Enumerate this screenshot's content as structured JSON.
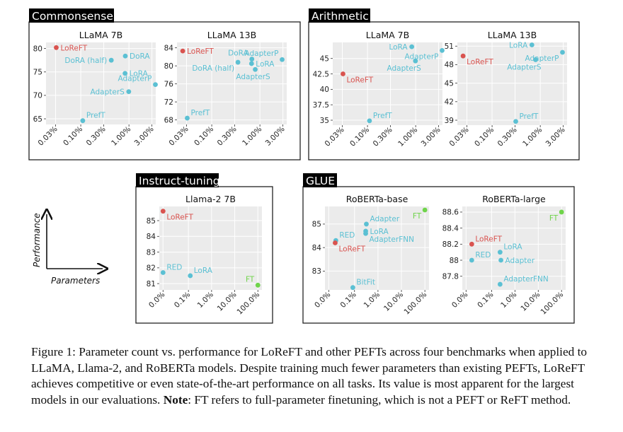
{
  "legend_arrows": {
    "y_label": "Performance",
    "x_label": "Parameters"
  },
  "caption": {
    "text_1": "Figure 1: Parameter count vs. performance for LoReFT and other PEFTs across four benchmarks when applied to LLaMA, Llama-2, and RoBERTa models. Despite training much fewer parameters than existing PEFTs, LoReFT achieves competitive or even state-of-the-art performance on all tasks. Its value is most apparent for the largest models in our evaluations.",
    "note_label": "Note",
    "text_2": ": FT refers to full-parameter finetuning, which is not a PEFT or ReFT method."
  },
  "colors": {
    "loreft": "#d9534f",
    "peft": "#5bc0d3",
    "ft": "#6fd44a",
    "plot_bg": "#ebebeb",
    "grid": "#ffffff"
  },
  "chart_data": [
    {
      "panel": "Commonsense",
      "title": "LLaMA 7B",
      "type": "scatter",
      "x_scale": "log",
      "xticks": [
        "0.03%",
        "0.10%",
        "0.30%",
        "1.00%",
        "3.00%"
      ],
      "xlim": [
        0.019,
        3.6
      ],
      "yticks": [
        65,
        70,
        75,
        80
      ],
      "ylim": [
        63.8,
        81.3
      ],
      "points": [
        {
          "label": "LoReFT",
          "x": 0.031,
          "y": 80.2,
          "kind": "loreft",
          "lpos": "right"
        },
        {
          "label": "DoRA",
          "x": 0.84,
          "y": 78.4,
          "kind": "peft",
          "lpos": "right"
        },
        {
          "label": "DoRA (half)",
          "x": 0.43,
          "y": 77.5,
          "kind": "peft",
          "lpos": "left"
        },
        {
          "label": "LoRA",
          "x": 0.83,
          "y": 74.7,
          "kind": "peft",
          "lpos": "right"
        },
        {
          "label": "AdapterP",
          "x": 3.54,
          "y": 72.3,
          "kind": "peft",
          "lpos": "left-up"
        },
        {
          "label": "AdapterS",
          "x": 0.99,
          "y": 70.8,
          "kind": "peft",
          "lpos": "left"
        },
        {
          "label": "PrefT",
          "x": 0.11,
          "y": 64.6,
          "kind": "peft",
          "lpos": "right-up"
        }
      ]
    },
    {
      "panel": "Commonsense",
      "title": "LLaMA 13B",
      "type": "scatter",
      "x_scale": "log",
      "xticks": [
        "0.03%",
        "0.10%",
        "0.30%",
        "1.00%",
        "3.00%"
      ],
      "xlim": [
        0.019,
        3.6
      ],
      "yticks": [
        68,
        72,
        76,
        80,
        84
      ],
      "ylim": [
        67.0,
        85.2
      ],
      "points": [
        {
          "label": "LoReFT",
          "x": 0.025,
          "y": 83.3,
          "kind": "loreft",
          "lpos": "right"
        },
        {
          "label": "DoRA",
          "x": 0.68,
          "y": 81.5,
          "kind": "peft",
          "lpos": "left-up"
        },
        {
          "label": "AdapterP",
          "x": 2.89,
          "y": 81.4,
          "kind": "peft",
          "lpos": "left-up"
        },
        {
          "label": "LoRA",
          "x": 0.67,
          "y": 80.5,
          "kind": "peft",
          "lpos": "right"
        },
        {
          "label": "DoRA (half)",
          "x": 0.35,
          "y": 80.8,
          "kind": "peft",
          "lpos": "left-down"
        },
        {
          "label": "AdapterS",
          "x": 0.8,
          "y": 79.2,
          "kind": "peft",
          "lpos": "down"
        },
        {
          "label": "PrefT",
          "x": 0.031,
          "y": 68.4,
          "kind": "peft",
          "lpos": "right-up"
        }
      ]
    },
    {
      "panel": "Arithmetic",
      "title": "LLaMA 7B",
      "type": "scatter",
      "x_scale": "log",
      "xticks": [
        "0.03%",
        "0.10%",
        "0.30%",
        "1.00%",
        "3.00%"
      ],
      "xlim": [
        0.019,
        3.6
      ],
      "yticks": [
        35,
        37.5,
        40,
        42.5,
        45
      ],
      "ylim": [
        34.2,
        47.6
      ],
      "points": [
        {
          "label": "LoReFT",
          "x": 0.031,
          "y": 42.5,
          "kind": "loreft",
          "lpos": "right-down"
        },
        {
          "label": "LoRA",
          "x": 0.83,
          "y": 46.9,
          "kind": "peft",
          "lpos": "left"
        },
        {
          "label": "AdapterP",
          "x": 3.54,
          "y": 46.3,
          "kind": "peft",
          "lpos": "left-down"
        },
        {
          "label": "AdapterS",
          "x": 0.99,
          "y": 44.6,
          "kind": "peft",
          "lpos": "down-left"
        },
        {
          "label": "PrefT",
          "x": 0.11,
          "y": 34.9,
          "kind": "peft",
          "lpos": "right-up"
        }
      ]
    },
    {
      "panel": "Arithmetic",
      "title": "LLaMA 13B",
      "type": "scatter",
      "x_scale": "log",
      "xticks": [
        "0.03%",
        "0.10%",
        "0.30%",
        "1.00%",
        "3.00%"
      ],
      "xlim": [
        0.019,
        3.6
      ],
      "yticks": [
        39,
        42,
        45,
        48,
        51
      ],
      "ylim": [
        38.2,
        51.6
      ],
      "points": [
        {
          "label": "LoReFT",
          "x": 0.025,
          "y": 49.4,
          "kind": "loreft",
          "lpos": "right-down"
        },
        {
          "label": "LoRA",
          "x": 0.67,
          "y": 51.2,
          "kind": "peft",
          "lpos": "left"
        },
        {
          "label": "AdapterP",
          "x": 2.89,
          "y": 50.0,
          "kind": "peft",
          "lpos": "left-down"
        },
        {
          "label": "AdapterS",
          "x": 0.8,
          "y": 48.8,
          "kind": "peft",
          "lpos": "down-left"
        },
        {
          "label": "PrefT",
          "x": 0.31,
          "y": 38.8,
          "kind": "peft",
          "lpos": "right-up"
        }
      ]
    },
    {
      "panel": "Instruct-tuning",
      "title": "Llama-2 7B",
      "type": "scatter",
      "x_scale": "log",
      "xticks": [
        "0.0%",
        "0.1%",
        "1.0%",
        "10.0%",
        "100.0%"
      ],
      "xlim": [
        0.0055,
        150
      ],
      "yticks": [
        81,
        82,
        83,
        84,
        85
      ],
      "ylim": [
        80.6,
        85.9
      ],
      "points": [
        {
          "label": "LoReFT",
          "x": 0.008,
          "y": 85.6,
          "kind": "loreft",
          "lpos": "right-down"
        },
        {
          "label": "RED",
          "x": 0.008,
          "y": 81.7,
          "kind": "peft",
          "lpos": "right-up"
        },
        {
          "label": "LoRA",
          "x": 0.12,
          "y": 81.5,
          "kind": "peft",
          "lpos": "right-up"
        },
        {
          "label": "FT",
          "x": 100,
          "y": 80.9,
          "kind": "ft",
          "lpos": "left-up"
        }
      ]
    },
    {
      "panel": "GLUE",
      "title": "RoBERTa-base",
      "type": "scatter",
      "x_scale": "log",
      "xticks": [
        "0.0%",
        "0.1%",
        "1.0%",
        "10.0%",
        "100.0%"
      ],
      "xlim": [
        0.0055,
        150
      ],
      "yticks": [
        83,
        84,
        85
      ],
      "ylim": [
        82.2,
        85.75
      ],
      "points": [
        {
          "label": "FT",
          "x": 100,
          "y": 85.6,
          "kind": "ft",
          "lpos": "left-down"
        },
        {
          "label": "Adapter",
          "x": 0.32,
          "y": 85.0,
          "kind": "peft",
          "lpos": "right-up"
        },
        {
          "label": "LoRA",
          "x": 0.3,
          "y": 84.7,
          "kind": "peft",
          "lpos": "right"
        },
        {
          "label": "AdapterFNN",
          "x": 0.3,
          "y": 84.6,
          "kind": "peft",
          "lpos": "right-down"
        },
        {
          "label": "RED",
          "x": 0.016,
          "y": 84.3,
          "kind": "peft",
          "lpos": "right-up"
        },
        {
          "label": "LoReFT",
          "x": 0.015,
          "y": 84.2,
          "kind": "loreft",
          "lpos": "right-down"
        },
        {
          "label": "BitFit",
          "x": 0.085,
          "y": 82.3,
          "kind": "peft",
          "lpos": "right-up"
        }
      ]
    },
    {
      "panel": "GLUE",
      "title": "RoBERTa-large",
      "type": "scatter",
      "x_scale": "log",
      "xticks": [
        "0.0%",
        "0.1%",
        "1.0%",
        "10.0%",
        "100.0%"
      ],
      "xlim": [
        0.0055,
        150
      ],
      "yticks": [
        87.8,
        88,
        88.2,
        88.4,
        88.6
      ],
      "ylim": [
        87.63,
        88.67
      ],
      "points": [
        {
          "label": "FT",
          "x": 100,
          "y": 88.6,
          "kind": "ft",
          "lpos": "left-down"
        },
        {
          "label": "LoReFT",
          "x": 0.014,
          "y": 88.2,
          "kind": "loreft",
          "lpos": "right-up"
        },
        {
          "label": "LoRA",
          "x": 0.23,
          "y": 88.1,
          "kind": "peft",
          "lpos": "right-up"
        },
        {
          "label": "Adapter",
          "x": 0.25,
          "y": 88.0,
          "kind": "peft",
          "lpos": "right"
        },
        {
          "label": "RED",
          "x": 0.014,
          "y": 88.0,
          "kind": "peft",
          "lpos": "right-up"
        },
        {
          "label": "AdapterFNN",
          "x": 0.23,
          "y": 87.7,
          "kind": "peft",
          "lpos": "right-up"
        }
      ]
    }
  ]
}
